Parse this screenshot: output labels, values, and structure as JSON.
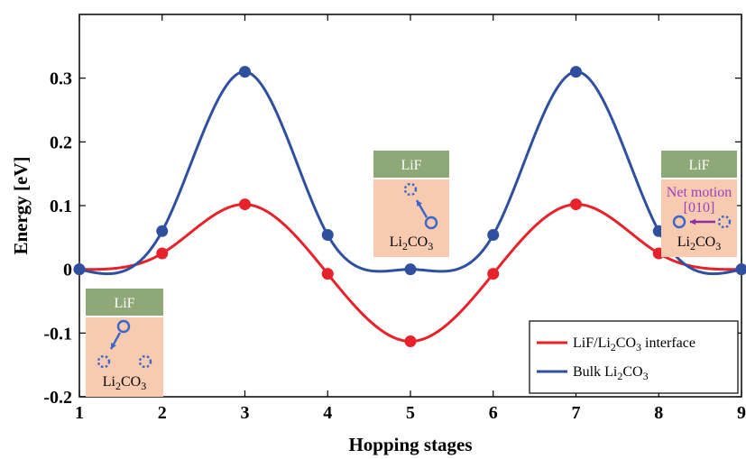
{
  "chart_data": {
    "type": "line",
    "xlabel": "Hopping stages",
    "ylabel": "Energy [eV]",
    "xlim": [
      1,
      9
    ],
    "ylim": [
      -0.2,
      0.4
    ],
    "xticks": [
      "1",
      "2",
      "3",
      "4",
      "5",
      "6",
      "7",
      "8",
      "9"
    ],
    "yticks": [
      "-0.2",
      "-0.1",
      "0",
      "0.1",
      "0.2",
      "0.3"
    ],
    "x": [
      1,
      2,
      3,
      4,
      5,
      6,
      7,
      8,
      9
    ],
    "series": [
      {
        "name_parts": {
          "base": "LiF/Li",
          "sub": "2",
          "mid": "CO",
          "sub2": "3",
          "suffix": " interface"
        },
        "color": "#e8222a",
        "values": [
          0.0,
          0.025,
          0.102,
          -0.007,
          -0.113,
          -0.007,
          0.102,
          0.025,
          0.0
        ]
      },
      {
        "name_parts": {
          "base": "Bulk Li",
          "sub": "2",
          "mid": "CO",
          "sub2": "3",
          "suffix": ""
        },
        "color": "#2f4f9f",
        "values": [
          0.0,
          0.06,
          0.31,
          0.054,
          0.0,
          0.054,
          0.31,
          0.06,
          0.0
        ]
      }
    ],
    "legend_position": "bottom-right",
    "grid": false,
    "insets": [
      {
        "top_label": "LiF",
        "bottom_label": {
          "base": "Li",
          "sub": "2",
          "mid": "CO",
          "sub2": "3"
        },
        "motion": "down-left"
      },
      {
        "top_label": "LiF",
        "bottom_label": {
          "base": "Li",
          "sub": "2",
          "mid": "CO",
          "sub2": "3"
        },
        "motion": "up-left"
      },
      {
        "top_label": "LiF",
        "bottom_label": {
          "base": "Li",
          "sub": "2",
          "mid": "CO",
          "sub2": "3"
        },
        "motion": "left",
        "annotation": [
          "Net motion",
          "[010]"
        ]
      }
    ],
    "colors": {
      "inset_top": "#8fa878",
      "inset_bottom": "#f8cbb0",
      "ion": "#3a66c9",
      "motion_arrow": "#8b2fa8",
      "annotation": "#9a3fc0"
    }
  }
}
